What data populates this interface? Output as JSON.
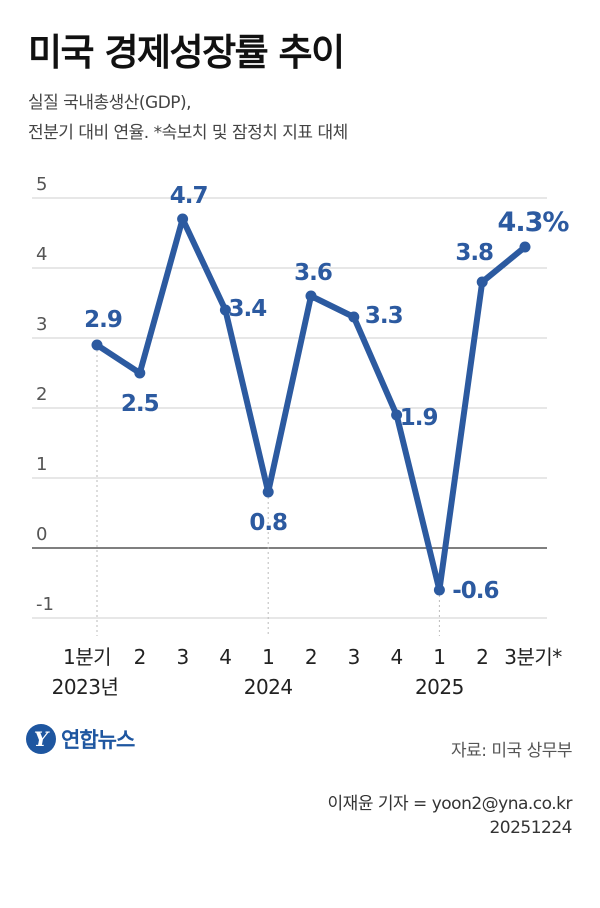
{
  "title": "미국 경제성장률 추이",
  "subtitle_line1": "실질 국내총생산(GDP),",
  "subtitle_line2": "전분기 대비 연율. *속보치 및 잠정치 지표 대체",
  "source": "자료: 미국 상무부",
  "credit_line1": "이재윤 기자 = yoon2@yna.co.kr",
  "credit_line2": "20251224",
  "logo": {
    "mark": "Y",
    "text": "연합뉴스"
  },
  "colors": {
    "line": "#2c5aa0",
    "grid": "#cfcfcf",
    "zero_line": "#555555",
    "label": "#2c5aa0"
  },
  "chart_data": {
    "type": "line",
    "title": "미국 경제성장률 추이",
    "xlabel": "",
    "ylabel": "",
    "ylim": [
      -1,
      5
    ],
    "y_ticks": [
      "5",
      "4",
      "3",
      "2",
      "1",
      "0",
      "-1"
    ],
    "categories": [
      "1분기",
      "2",
      "3",
      "4",
      "1",
      "2",
      "3",
      "4",
      "1",
      "2",
      "3분기*"
    ],
    "year_labels": [
      {
        "index": 0,
        "label": "2023년"
      },
      {
        "index": 4,
        "label": "2024"
      },
      {
        "index": 8,
        "label": "2025"
      }
    ],
    "series": [
      {
        "values": [
          2.9,
          2.5,
          4.7,
          3.4,
          0.8,
          3.6,
          3.3,
          1.9,
          -0.6,
          3.8,
          4.3
        ],
        "data_labels": [
          "2.9",
          "2.5",
          "4.7",
          "3.4",
          "0.8",
          "3.6",
          "3.3",
          "1.9",
          "-0.6",
          "3.8",
          "4.3%"
        ]
      }
    ],
    "grid": true
  }
}
